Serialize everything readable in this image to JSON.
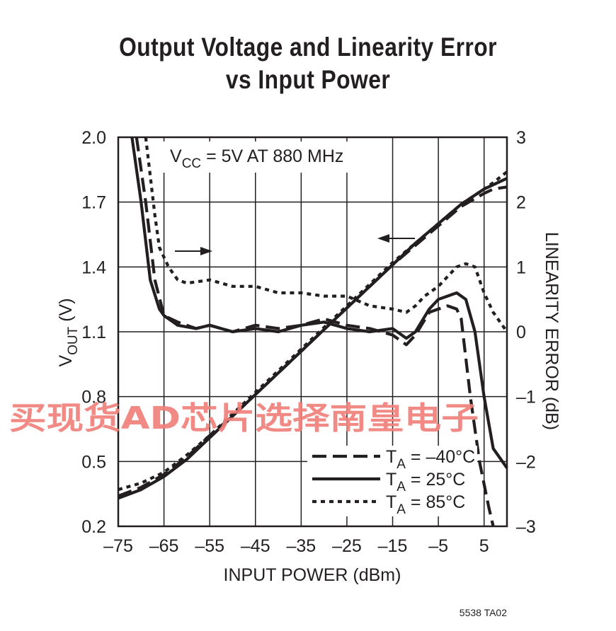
{
  "title_line1": "Output Voltage and Linearity Error",
  "title_line2": "vs Input Power",
  "annotation": {
    "v": "V",
    "sub": "CC",
    "rest": " = 5V AT 880 MHz"
  },
  "xlabel": "INPUT POWER (dBm)",
  "ylabel_left": {
    "v": "V",
    "sub": "OUT",
    "rest": " (V)"
  },
  "ylabel_right": "LINEARITY ERROR (dB)",
  "watermark": "买现货AD芯片选择南皇电子",
  "figure_id": "5538 TA02",
  "colors": {
    "ink": "#231f20",
    "watermark": "#f0807b"
  },
  "chart_data": {
    "type": "line",
    "x_ticks": [
      "–75",
      "–65",
      "–55",
      "–45",
      "–35",
      "–25",
      "–15",
      "–5",
      "5"
    ],
    "y_left_ticks": [
      "2.0",
      "1.7",
      "1.4",
      "1.1",
      "0.8",
      "0.5",
      "0.2"
    ],
    "y_right_ticks": [
      "3",
      "2",
      "1",
      "0",
      "–1",
      "–2",
      "–3"
    ],
    "xlim": [
      -75,
      10
    ],
    "ylim_left": [
      0.2,
      2.0
    ],
    "ylim_right": [
      -3,
      3
    ],
    "grid": true,
    "legend_position": "bottom-right",
    "legend": [
      {
        "label_main": "T",
        "label_sub": "A",
        "label_rest": " = –40°C",
        "style": "dashed"
      },
      {
        "label_main": "T",
        "label_sub": "A",
        "label_rest": " = 25°C",
        "style": "solid"
      },
      {
        "label_main": "T",
        "label_sub": "A",
        "label_rest": " = 85°C",
        "style": "dotted"
      }
    ],
    "vout_series": [
      {
        "name": "T_A = –40°C",
        "style": "dashed",
        "x": [
          -75,
          -70,
          -65,
          -60,
          -55,
          -50,
          -45,
          -40,
          -35,
          -30,
          -25,
          -20,
          -15,
          -10,
          -5,
          0,
          5,
          7,
          10
        ],
        "y": [
          0.34,
          0.38,
          0.44,
          0.52,
          0.62,
          0.71,
          0.81,
          0.91,
          1.01,
          1.11,
          1.21,
          1.31,
          1.41,
          1.5,
          1.59,
          1.68,
          1.74,
          1.76,
          1.77
        ]
      },
      {
        "name": "T_A = 25°C",
        "style": "solid",
        "x": [
          -75,
          -70,
          -65,
          -60,
          -55,
          -50,
          -45,
          -40,
          -35,
          -30,
          -25,
          -20,
          -15,
          -10,
          -5,
          0,
          5,
          7,
          10
        ],
        "y": [
          0.33,
          0.37,
          0.43,
          0.51,
          0.61,
          0.71,
          0.81,
          0.91,
          1.01,
          1.11,
          1.21,
          1.31,
          1.41,
          1.51,
          1.6,
          1.69,
          1.76,
          1.78,
          1.81
        ]
      },
      {
        "name": "T_A = 85°C",
        "style": "dotted",
        "x": [
          -75,
          -70,
          -65,
          -60,
          -55,
          -50,
          -45,
          -40,
          -35,
          -30,
          -25,
          -20,
          -15,
          -10,
          -5,
          0,
          5,
          7,
          10
        ],
        "y": [
          0.37,
          0.4,
          0.45,
          0.53,
          0.62,
          0.72,
          0.82,
          0.92,
          1.02,
          1.12,
          1.22,
          1.32,
          1.42,
          1.51,
          1.6,
          1.69,
          1.76,
          1.79,
          1.84
        ]
      }
    ],
    "linearity_series": [
      {
        "name": "T_A = –40°C",
        "style": "dashed",
        "x": [
          -71,
          -69,
          -67,
          -65,
          -62,
          -58,
          -55,
          -50,
          -45,
          -40,
          -35,
          -30,
          -25,
          -20,
          -15,
          -12,
          -10,
          -7,
          -5,
          -3,
          -1,
          0,
          2,
          4,
          6,
          7
        ],
        "y": [
          3.0,
          2.0,
          0.8,
          0.25,
          0.15,
          0.05,
          0.1,
          0.0,
          0.1,
          0.05,
          0.1,
          0.2,
          0.1,
          0.05,
          -0.05,
          -0.2,
          -0.05,
          0.3,
          0.35,
          0.4,
          0.35,
          0.2,
          -1.0,
          -2.0,
          -2.7,
          -3.0
        ]
      },
      {
        "name": "T_A = 25°C",
        "style": "solid",
        "x": [
          -72,
          -70,
          -68,
          -66,
          -65,
          -62,
          -58,
          -55,
          -50,
          -45,
          -40,
          -35,
          -30,
          -25,
          -20,
          -15,
          -12,
          -10,
          -7,
          -5,
          -3,
          -1,
          1,
          3,
          5,
          7,
          10
        ],
        "y": [
          3.0,
          2.0,
          0.8,
          0.35,
          0.25,
          0.1,
          0.05,
          0.1,
          0.0,
          0.05,
          0.0,
          0.1,
          0.15,
          0.05,
          0.0,
          0.05,
          -0.1,
          0.0,
          0.35,
          0.5,
          0.55,
          0.6,
          0.5,
          0.0,
          -1.0,
          -1.8,
          -2.1
        ]
      },
      {
        "name": "T_A = 85°C",
        "style": "dotted",
        "x": [
          -69,
          -67,
          -66,
          -64,
          -62,
          -60,
          -55,
          -50,
          -45,
          -40,
          -35,
          -30,
          -25,
          -20,
          -15,
          -12,
          -10,
          -8,
          -5,
          -3,
          -1,
          1,
          3,
          5,
          7,
          10
        ],
        "y": [
          3.0,
          1.8,
          1.3,
          1.0,
          0.8,
          0.75,
          0.8,
          0.7,
          0.7,
          0.6,
          0.6,
          0.55,
          0.55,
          0.4,
          0.35,
          0.3,
          0.4,
          0.55,
          0.7,
          0.85,
          1.0,
          1.05,
          1.0,
          0.6,
          0.3,
          0.0
        ]
      }
    ]
  }
}
